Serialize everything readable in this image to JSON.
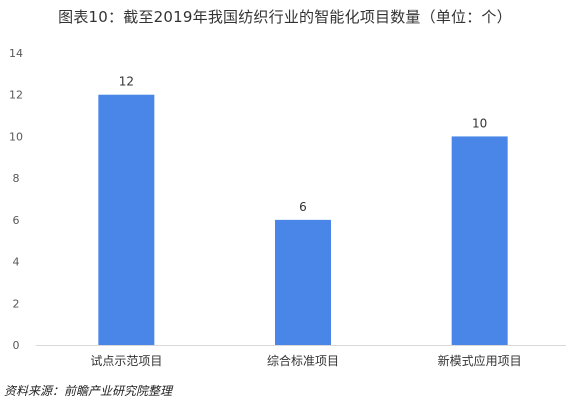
{
  "chart_data": {
    "type": "bar",
    "title": "图表10：截至2019年我国纺织行业的智能化项目数量（单位：个）",
    "categories": [
      "试点示范项目",
      "综合标准项目",
      "新模式应用项目"
    ],
    "values": [
      12,
      6,
      10
    ],
    "ylim": [
      0,
      14
    ],
    "yticks": [
      0,
      2,
      4,
      6,
      8,
      10,
      12,
      14
    ],
    "grid": false,
    "bar_color": "#4a86e8",
    "data_labels": true
  },
  "source": "资料来源：前瞻产业研究院整理"
}
